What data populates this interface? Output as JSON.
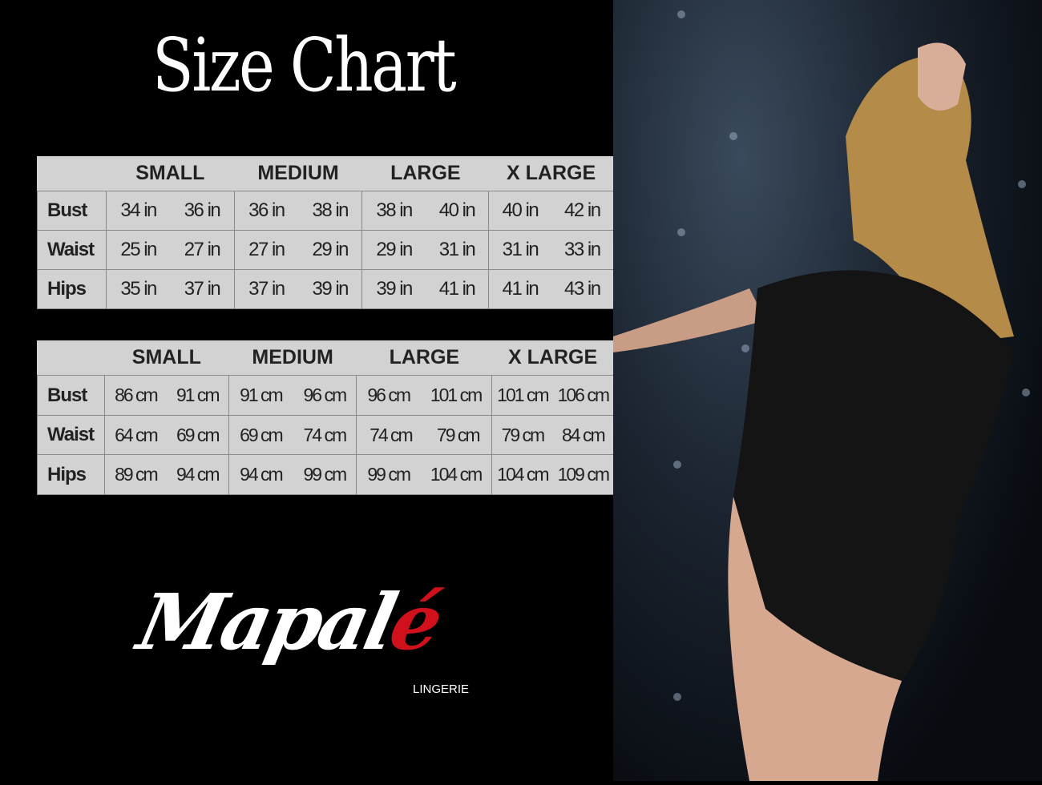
{
  "title": "Size Chart",
  "tables": [
    {
      "unit": "in",
      "sizes": [
        "SMALL",
        "MEDIUM",
        "LARGE",
        "X LARGE"
      ],
      "rows": [
        {
          "label": "Bust",
          "values": [
            "34 in",
            "36 in",
            "36 in",
            "38 in",
            "38 in",
            "40 in",
            "40 in",
            "42 in"
          ]
        },
        {
          "label": "Waist",
          "values": [
            "25 in",
            "27 in",
            "27 in",
            "29 in",
            "29 in",
            "31 in",
            "31 in",
            "33 in"
          ]
        },
        {
          "label": "Hips",
          "values": [
            "35 in",
            "37 in",
            "37 in",
            "39 in",
            "39 in",
            "41 in",
            "41 in",
            "43 in"
          ]
        }
      ]
    },
    {
      "unit": "cm",
      "sizes": [
        "SMALL",
        "MEDIUM",
        "LARGE",
        "X LARGE"
      ],
      "rows": [
        {
          "label": "Bust",
          "values": [
            "86 cm",
            "91 cm",
            "91 cm",
            "96 cm",
            "96 cm",
            "101 cm",
            "101 cm",
            "106 cm"
          ]
        },
        {
          "label": "Waist",
          "values": [
            "64 cm",
            "69 cm",
            "69 cm",
            "74 cm",
            "74 cm",
            "79  cm",
            "79 cm",
            "84 cm"
          ]
        },
        {
          "label": "Hips",
          "values": [
            "89 cm",
            "94 cm",
            "94 cm",
            "99 cm",
            "99 cm",
            "104 cm",
            "104 cm",
            "109 cm"
          ]
        }
      ]
    }
  ],
  "logo": {
    "name_main": "Mapal",
    "name_accent": "é",
    "subtitle": "LINGERIE",
    "accent_color": "#d0101a"
  },
  "photo": {
    "description_icon": "model-photo"
  }
}
